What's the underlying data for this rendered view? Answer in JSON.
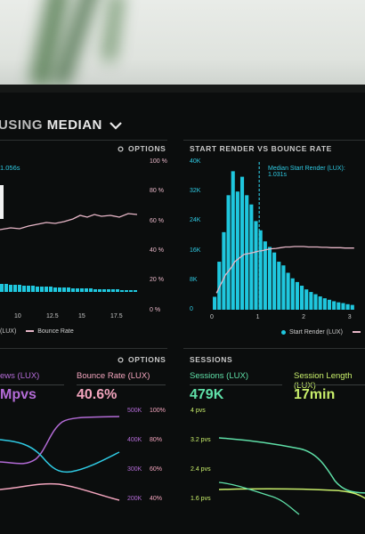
{
  "dashboard": {
    "title_lead": "USING",
    "title_main": "MEDIAN"
  },
  "panel_tl": {
    "options": "OPTIONS",
    "top_label": "1.056s",
    "y_right_ticks": [
      "100 %",
      "80 %",
      "60 %",
      "40 %",
      "20 %",
      "0 %"
    ],
    "x_ticks": [
      "10",
      "12.5",
      "15",
      "17.5"
    ],
    "legend_left": "(LUX)",
    "legend_right": "Bounce Rate"
  },
  "panel_tr": {
    "title": "START RENDER VS BOUNCE RATE",
    "annotation": "Median Start Render (LUX): 1.031s",
    "y_ticks": [
      "40K",
      "32K",
      "24K",
      "16K",
      "8K",
      "0"
    ],
    "x_ticks": [
      "0",
      "1",
      "2",
      "3"
    ],
    "legend_bars": "Start Render (LUX)",
    "colors": {
      "bars": "#1fc7de",
      "bounce": "#e8b7c8"
    }
  },
  "panel_bl": {
    "options": "OPTIONS",
    "label_a": "ews (LUX)",
    "value_a": "Mpvs",
    "label_b": "Bounce Rate (LUX)",
    "value_b": "40.6%",
    "ticks_views": [
      "500K",
      "400K",
      "300K",
      "200K"
    ],
    "ticks_pct": [
      "100%",
      "80%",
      "60%",
      "40%"
    ],
    "colors": {
      "views": "#b36bd6",
      "bounce": "#f2a4bd"
    }
  },
  "panel_br": {
    "title": "SESSIONS",
    "label_a": "Sessions (LUX)",
    "value_a": "479K",
    "label_b": "Session Length (LUX)",
    "value_b": "17min",
    "ticks": [
      "4 pvs",
      "3.2 pvs",
      "2.4 pvs",
      "1.6 pvs"
    ],
    "colors": {
      "sessions": "#5fe0a8",
      "length": "#c9ef6b"
    }
  },
  "chart_data": [
    {
      "type": "bar",
      "title": "START RENDER VS BOUNCE RATE",
      "xlim": [
        0,
        3.2
      ],
      "ylim": [
        0,
        40000
      ],
      "categories": [
        0.1,
        0.2,
        0.3,
        0.4,
        0.5,
        0.6,
        0.7,
        0.8,
        0.9,
        1.0,
        1.1,
        1.2,
        1.3,
        1.4,
        1.5,
        1.6,
        1.7,
        1.8,
        1.9,
        2.0,
        2.1,
        2.2,
        2.3,
        2.4,
        2.5,
        2.6,
        2.7,
        2.8,
        2.9,
        3.0,
        3.1
      ],
      "series": [
        {
          "name": "Start Render (LUX)",
          "values": [
            3500,
            13000,
            21000,
            31000,
            37500,
            32000,
            36000,
            31000,
            28500,
            24000,
            21500,
            18500,
            17000,
            15500,
            13000,
            12000,
            10000,
            8500,
            7500,
            6500,
            5500,
            4800,
            4200,
            3600,
            3100,
            2700,
            2300,
            2000,
            1800,
            1500,
            1300
          ]
        },
        {
          "name": "Bounce Rate",
          "values": [
            4500,
            7000,
            9500,
            11000,
            13000,
            14000,
            15000,
            15200,
            15500,
            15800,
            16000,
            16300,
            16500,
            16600,
            16800,
            17000,
            17000,
            17100,
            17100,
            17100,
            17000,
            17000,
            17000,
            16900,
            16900,
            16800,
            16800,
            16800,
            16700,
            16700,
            16700
          ]
        }
      ],
      "annotation": {
        "x": 1.031,
        "text": "Median Start Render (LUX): 1.031s"
      }
    }
  ]
}
